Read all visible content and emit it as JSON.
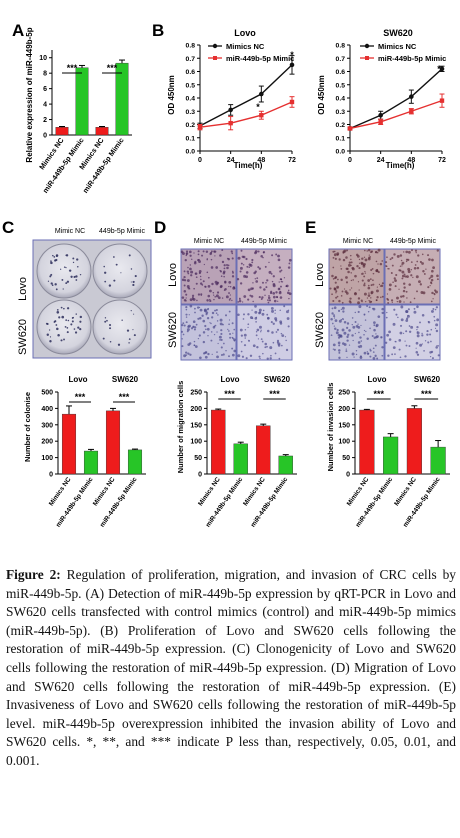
{
  "colors": {
    "nc_bar": "#ee1c1c",
    "mimic_bar": "#27c527",
    "nc_line": "#111111",
    "mimic_line": "#e53030",
    "photo_border": "#6b6fb5"
  },
  "panel_labels": {
    "a": "A",
    "b": "B",
    "c": "C",
    "d": "D",
    "e": "E"
  },
  "panelA": {
    "ylabel": "Relative expression of miR-449b-5p",
    "categories": [
      "Mimics NC",
      "miR-449b-5p Mimic",
      "Mimics NC",
      "miR-449b-5p Mimic"
    ],
    "sig": [
      "***",
      "***"
    ]
  },
  "panelB": {
    "lovo": {
      "title": "Lovo",
      "ylabel": "OD 450nm",
      "xlabel": "Time(h)",
      "legend": [
        "Mimics NC",
        "miR-449b-5p Mimic"
      ],
      "stars": [
        "*",
        "*"
      ]
    },
    "sw620": {
      "title": "SW620",
      "ylabel": "OD 450nm",
      "xlabel": "Time(h)",
      "legend": [
        "Mimics NC",
        "miR-449b-5p Mimic"
      ],
      "stars": [
        "*"
      ]
    }
  },
  "panelC": {
    "col_headers": [
      "Mimic NC",
      "449b-5p Mimic"
    ],
    "row_labels": [
      "Lovo",
      "SW620"
    ]
  },
  "panelD": {
    "col_headers": [
      "Mimic NC",
      "449b-5p Mimic"
    ],
    "row_labels": [
      "Lovo",
      "SW620"
    ]
  },
  "panelE": {
    "col_headers": [
      "Mimic NC",
      "449b-5p Mimic"
    ],
    "row_labels": [
      "Lovo",
      "SW620"
    ]
  },
  "panelC_chart": {
    "ylabel": "Number of colonise",
    "groups": [
      "Lovo",
      "SW620"
    ],
    "categories": [
      "Mimics NC",
      "miR-449b-5p Mimic",
      "Mimics NC",
      "miR-449b-5p Mimic"
    ],
    "sig": [
      "***",
      "***"
    ]
  },
  "panelD_chart": {
    "ylabel": "Number of migration cells",
    "groups": [
      "Lovo",
      "SW620"
    ],
    "categories": [
      "Mimics NC",
      "miR-449b-5p Mimic",
      "Mimics NC",
      "miR-449b-5p Mimic"
    ],
    "sig": [
      "***",
      "***"
    ]
  },
  "panelE_chart": {
    "ylabel": "Number of invasion cells",
    "groups": [
      "Lovo",
      "SW620"
    ],
    "categories": [
      "Mimics NC",
      "miR-449b-5p Mimic",
      "Mimics NC",
      "miR-449b-5p Mimic"
    ],
    "sig": [
      "***",
      "***"
    ]
  },
  "caption": {
    "label": "Figure 2:",
    "text": "Regulation of proliferation, migration, and invasion of CRC cells by miR-449b-5p. (A) Detection of miR-449b-5p expression by qRT-PCR in Lovo and SW620 cells transfected with control mimics (control) and miR-449b-5p mimics (miR-449b-5p). (B) Proliferation of Lovo and SW620 cells following the restoration of miR-449b-5p expression. (C) Clonogenicity of Lovo and SW620 cells following the restoration of miR-449b-5p expression. (D) Migration of Lovo and SW620 cells following the restoration of miR-449b-5p expression. (E) Invasiveness of Lovo and SW620 cells following the restoration of miR-449b-5p level. miR-449b-5p overexpression inhibited the invasion ability of Lovo and SW620 cells. *, **, and *** indicate P less than, respectively, 0.05, 0.01, and 0.001."
  },
  "chart_data": [
    {
      "id": "A",
      "type": "bar",
      "categories": [
        "Mimics NC",
        "miR-449b-5p Mimic",
        "Mimics NC",
        "miR-449b-5p Mimic"
      ],
      "values": [
        1.0,
        8.7,
        1.0,
        9.3
      ],
      "errors": [
        0.1,
        0.3,
        0.1,
        0.4
      ],
      "ylim": [
        0,
        11
      ],
      "yticks": [
        0,
        2,
        4,
        6,
        8,
        10
      ],
      "ylabel": "Relative expression of miR-449b-5p",
      "xlabel": ""
    },
    {
      "id": "B-Lovo",
      "type": "line",
      "title": "Lovo",
      "x": [
        0,
        24,
        48,
        72
      ],
      "xticks": [
        0,
        24,
        48,
        72
      ],
      "ylim": [
        0,
        0.8
      ],
      "yticks": [
        0.0,
        0.1,
        0.2,
        0.3,
        0.4,
        0.5,
        0.6,
        0.7,
        0.8
      ],
      "xlabel": "Time(h)",
      "ylabel": "OD 450nm",
      "series": [
        {
          "name": "Mimics NC",
          "values": [
            0.19,
            0.31,
            0.43,
            0.65
          ],
          "errors": [
            0.02,
            0.04,
            0.06,
            0.07
          ]
        },
        {
          "name": "miR-449b-5p Mimic",
          "values": [
            0.18,
            0.21,
            0.27,
            0.37
          ],
          "errors": [
            0.02,
            0.05,
            0.03,
            0.04
          ]
        }
      ]
    },
    {
      "id": "B-SW620",
      "type": "line",
      "title": "SW620",
      "x": [
        0,
        24,
        48,
        72
      ],
      "xticks": [
        0,
        24,
        48,
        72
      ],
      "ylim": [
        0,
        0.8
      ],
      "yticks": [
        0.0,
        0.1,
        0.2,
        0.3,
        0.4,
        0.5,
        0.6,
        0.7,
        0.8
      ],
      "xlabel": "Time(h)",
      "ylabel": "OD 450nm",
      "series": [
        {
          "name": "Mimics NC",
          "values": [
            0.17,
            0.27,
            0.41,
            0.62
          ],
          "errors": [
            0.01,
            0.03,
            0.05,
            0.02
          ]
        },
        {
          "name": "miR-449b-5p Mimic",
          "values": [
            0.17,
            0.22,
            0.3,
            0.38
          ],
          "errors": [
            0.01,
            0.02,
            0.02,
            0.05
          ]
        }
      ]
    },
    {
      "id": "C",
      "type": "bar",
      "categories": [
        "Mimics NC",
        "miR-449b-5p Mimic",
        "Mimics NC",
        "miR-449b-5p Mimic"
      ],
      "values": [
        365,
        140,
        385,
        147
      ],
      "errors": [
        50,
        10,
        15,
        5
      ],
      "ylim": [
        0,
        500
      ],
      "yticks": [
        0,
        100,
        200,
        300,
        400,
        500
      ],
      "ylabel": "Number of colonise",
      "xlabel": ""
    },
    {
      "id": "D",
      "type": "bar",
      "categories": [
        "Mimics NC",
        "miR-449b-5p Mimic",
        "Mimics NC",
        "miR-449b-5p Mimic"
      ],
      "values": [
        195,
        92,
        147,
        55
      ],
      "errors": [
        3,
        5,
        5,
        4
      ],
      "ylim": [
        0,
        250
      ],
      "yticks": [
        0,
        50,
        100,
        150,
        200,
        250
      ],
      "ylabel": "Number of migration cells",
      "xlabel": ""
    },
    {
      "id": "E",
      "type": "bar",
      "categories": [
        "Mimics NC",
        "miR-449b-5p Mimic",
        "Mimics NC",
        "miR-449b-5p Mimic"
      ],
      "values": [
        195,
        113,
        200,
        82
      ],
      "errors": [
        2,
        10,
        8,
        20
      ],
      "ylim": [
        0,
        250
      ],
      "yticks": [
        0,
        50,
        100,
        150,
        200,
        250
      ],
      "ylabel": "Number of invasion cells",
      "xlabel": ""
    }
  ]
}
